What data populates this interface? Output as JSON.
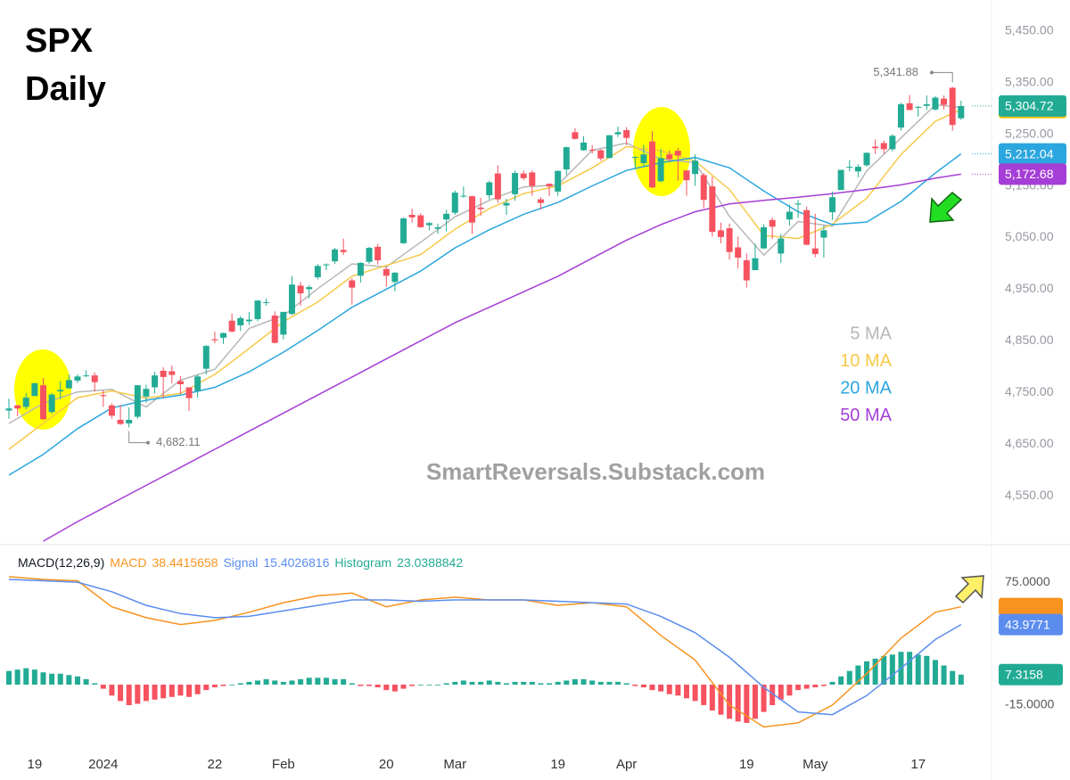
{
  "title": "SPX",
  "subtitle": "Daily",
  "watermark": "SmartReversals.Substack.com",
  "chart_data": [
    {
      "type": "candlestick",
      "categories": [
        null,
        null,
        null,
        "19",
        null,
        null,
        null,
        null,
        null,
        null,
        null,
        "2024",
        null,
        null,
        null,
        null,
        null,
        null,
        null,
        null,
        null,
        null,
        null,
        null,
        "22",
        null,
        null,
        null,
        null,
        null,
        null,
        null,
        "Feb",
        null,
        null,
        null,
        null,
        null,
        null,
        null,
        null,
        null,
        null,
        null,
        "20",
        null,
        null,
        null,
        null,
        null,
        null,
        null,
        "Mar",
        null,
        null,
        null,
        null,
        null,
        null,
        null,
        null,
        null,
        null,
        null,
        "19",
        null,
        null,
        null,
        null,
        null,
        null,
        null,
        "Apr",
        null,
        null,
        null,
        null,
        null,
        null,
        null,
        null,
        null,
        null,
        null,
        null,
        null,
        "19",
        null,
        null,
        null,
        null,
        null,
        null,
        null,
        "May",
        null,
        null,
        null,
        null,
        null,
        null,
        null,
        null,
        null,
        null,
        null,
        "17",
        null,
        null,
        null,
        null,
        null
      ],
      "open": [
        4715,
        4725,
        4722,
        4743,
        4764,
        4712,
        4752,
        4758,
        4773,
        4782,
        4783,
        4745,
        4725,
        4697,
        4690,
        4703,
        4742,
        4760,
        4792,
        4791,
        4772,
        4760,
        4753,
        4796,
        4853,
        4856,
        4889,
        4880,
        4888,
        4892,
        4925,
        4899,
        4862,
        4902,
        4957,
        4950,
        4973,
        4998,
        5004,
        5026,
        4967,
        4976,
        5003,
        5032,
        4989,
        4964,
        5039,
        5094,
        5093,
        5074,
        5067,
        5085,
        5098,
        5130,
        5130,
        5108,
        5132,
        5174,
        5112,
        5134,
        5174,
        5176,
        5124,
        5154,
        5139,
        5182,
        5254,
        5219,
        5220,
        5219,
        5204,
        5250,
        5258,
        5206,
        5194,
        5236,
        5159,
        5211,
        5218,
        5180,
        5173,
        5171,
        5149,
        5064,
        5068,
        5031,
        5006,
        4987,
        5029,
        5084,
        5019,
        5085,
        5114,
        5103,
        5029,
        5050,
        5099,
        5142,
        5187,
        5178,
        5190,
        5226,
        5233,
        5221,
        5263,
        5310,
        5303,
        5305,
        5298,
        5319,
        5340,
        5281
      ],
      "high": [
        4738,
        4726,
        4749,
        4769,
        4778,
        4749,
        4772,
        4785,
        4785,
        4793,
        4789,
        4754,
        4729,
        4726,
        4721,
        4764,
        4765,
        4790,
        4799,
        4802,
        4782,
        4760,
        4785,
        4842,
        4868,
        4866,
        4903,
        4898,
        4906,
        4929,
        4932,
        4907,
        4906,
        4975,
        4964,
        4958,
        4999,
        5000,
        5030,
        5048,
        4971,
        5002,
        5032,
        5038,
        4993,
        4983,
        5089,
        5106,
        5097,
        5080,
        5077,
        5104,
        5141,
        5149,
        5131,
        5127,
        5160,
        5190,
        5125,
        5180,
        5180,
        5180,
        5128,
        5155,
        5180,
        5226,
        5262,
        5246,
        5229,
        5221,
        5249,
        5265,
        5264,
        5208,
        5229,
        5256,
        5222,
        5219,
        5224,
        5180,
        5211,
        5175,
        5168,
        5079,
        5077,
        5052,
        5019,
        5038,
        5076,
        5089,
        5057,
        5114,
        5123,
        5110,
        5096,
        5073,
        5139,
        5181,
        5200,
        5192,
        5215,
        5240,
        5238,
        5250,
        5311,
        5326,
        5305,
        5325,
        5324,
        5325,
        5341.88,
        5315
      ],
      "low": [
        4699,
        4704,
        4717,
        4743,
        4697,
        4709,
        4737,
        4758,
        4768,
        4780,
        4752,
        4722,
        4699,
        4687,
        4682.11,
        4699,
        4730,
        4748,
        4739,
        4768,
        4747,
        4714,
        4740,
        4785,
        4845,
        4844,
        4866,
        4869,
        4881,
        4888,
        4918,
        4845,
        4853,
        4900,
        4918,
        4932,
        4969,
        4987,
        4999,
        5016,
        4920,
        4963,
        4999,
        4998,
        4955,
        4946,
        5038,
        5079,
        5069,
        5064,
        5057,
        5062,
        5094,
        5127,
        5057,
        5092,
        5124,
        5117,
        5094,
        5121,
        5161,
        5131,
        5104,
        5130,
        5131,
        5171,
        5240,
        5218,
        5213,
        5199,
        5204,
        5245,
        5229,
        5184,
        5189,
        5146,
        5157,
        5197,
        5160,
        5131,
        5150,
        5107,
        5052,
        5039,
        5007,
        4990,
        4953,
        4987,
        5028,
        5047,
        5001,
        5073,
        5088,
        5035,
        5012,
        5011,
        5084,
        5142,
        5178,
        5167,
        5187,
        5212,
        5212,
        5217,
        5257,
        5297,
        5284,
        5297,
        5296,
        5298,
        5257,
        5278
      ],
      "close": [
        4719,
        4719,
        4740,
        4768,
        4698,
        4746,
        4755,
        4774,
        4781,
        4783,
        4770,
        4743,
        4705,
        4689,
        4697,
        4764,
        4757,
        4783,
        4780,
        4784,
        4766,
        4739,
        4781,
        4840,
        4851,
        4865,
        4868,
        4894,
        4891,
        4928,
        4925,
        4846,
        4906,
        4959,
        4942,
        4954,
        4995,
        4998,
        5027,
        5022,
        4953,
        5001,
        5030,
        5006,
        4976,
        4982,
        5087,
        5089,
        5070,
        5078,
        5070,
        5096,
        5137,
        5131,
        5079,
        5105,
        5157,
        5124,
        5117,
        5175,
        5165,
        5150,
        5117,
        5149,
        5179,
        5225,
        5241,
        5234,
        5218,
        5203,
        5248,
        5254,
        5243,
        5206,
        5211,
        5147,
        5204,
        5202,
        5209,
        5161,
        5199,
        5123,
        5061,
        5051,
        5022,
        5011,
        4967,
        5010,
        5070,
        5071,
        5048,
        5100,
        5116,
        5036,
        5018,
        5064,
        5128,
        5181,
        5187,
        5187,
        5214,
        5223,
        5221,
        5247,
        5308,
        5297,
        5303,
        5308,
        5321,
        5307,
        5268,
        5304.72
      ],
      "up_color": "#22ab94",
      "down_color": "#f7525f",
      "series": [
        {
          "name": "5 MA",
          "color": "#b7b7b7",
          "x": [
            0,
            4,
            8,
            12,
            16,
            20,
            24,
            28,
            32,
            36,
            40,
            44,
            48,
            52,
            56,
            60,
            64,
            68,
            72,
            76,
            80,
            84,
            88,
            92,
            96,
            100,
            104,
            108,
            111
          ],
          "values": [
            4690,
            4729,
            4751,
            4756,
            4722,
            4774,
            4795,
            4874,
            4899,
            4951,
            4999,
            4993,
            5041,
            5090,
            5122,
            5148,
            5152,
            5219,
            5233,
            5202,
            5195,
            5091,
            5016,
            5081,
            5072,
            5179,
            5243,
            5307,
            5302
          ]
        },
        {
          "name": "10 MA",
          "color": "#f7c948",
          "x": [
            0,
            4,
            8,
            12,
            16,
            20,
            24,
            28,
            32,
            36,
            40,
            44,
            48,
            52,
            56,
            60,
            64,
            68,
            72,
            76,
            80,
            84,
            88,
            92,
            96,
            100,
            104,
            108,
            111
          ],
          "values": [
            4640,
            4690,
            4740,
            4753,
            4739,
            4748,
            4785,
            4835,
            4887,
            4925,
            4975,
            4996,
            5017,
            5066,
            5106,
            5135,
            5150,
            5185,
            5226,
            5218,
            5198,
            5143,
            5054,
            5048,
            5076,
            5126,
            5211,
            5275,
            5298
          ]
        },
        {
          "name": "20 MA",
          "color": "#2ba6de",
          "x": [
            0,
            4,
            8,
            12,
            16,
            20,
            24,
            28,
            32,
            36,
            40,
            44,
            48,
            52,
            56,
            60,
            64,
            68,
            72,
            76,
            80,
            84,
            88,
            92,
            96,
            100,
            104,
            108,
            111
          ],
          "values": [
            4590,
            4630,
            4680,
            4720,
            4735,
            4745,
            4760,
            4790,
            4828,
            4870,
            4915,
            4950,
            4985,
            5030,
            5065,
            5095,
            5118,
            5150,
            5180,
            5195,
            5205,
            5185,
            5140,
            5100,
            5075,
            5080,
            5120,
            5175,
            5212.04
          ]
        },
        {
          "name": "50 MA",
          "color": "#a53ed6",
          "x": [
            4,
            8,
            12,
            16,
            20,
            24,
            28,
            32,
            36,
            40,
            44,
            48,
            52,
            56,
            60,
            64,
            68,
            72,
            76,
            80,
            84,
            88,
            92,
            96,
            100,
            104,
            108,
            111
          ],
          "values": [
            4462,
            4500,
            4535,
            4570,
            4605,
            4640,
            4675,
            4710,
            4745,
            4780,
            4815,
            4850,
            4885,
            4915,
            4945,
            4975,
            5010,
            5045,
            5075,
            5100,
            5115,
            5122,
            5128,
            5135,
            5143,
            5152,
            5165,
            5172.68
          ]
        }
      ],
      "ylim": [
        4457,
        5510
      ],
      "yticks": [
        {
          "value": 5450,
          "label": "5,450.00"
        },
        {
          "value": 5350,
          "label": "5,350.00"
        },
        {
          "value": 5250,
          "label": "5,250.00"
        },
        {
          "value": 5150,
          "label": "5,150.00"
        },
        {
          "value": 5050,
          "label": "5,050.00"
        },
        {
          "value": 4950,
          "label": "4,950.00"
        },
        {
          "value": 4850,
          "label": "4,850.00"
        },
        {
          "value": 4750,
          "label": "4,750.00"
        },
        {
          "value": 4650,
          "label": "4,650.00"
        },
        {
          "value": 4550,
          "label": "4,550.00"
        }
      ],
      "price_labels": [
        {
          "value": 5304.72,
          "label": "5,304.72",
          "color": "#22ab94"
        },
        {
          "value": 5212.04,
          "label": "5,212.04",
          "color": "#2ba6de"
        },
        {
          "value": 5172.68,
          "label": "5,172.68",
          "color": "#a53ed6"
        }
      ],
      "annotations": [
        {
          "value": 5341.88,
          "label": "5,341.88"
        },
        {
          "value": 4682.11,
          "label": "4,682.11"
        }
      ]
    },
    {
      "type": "macd",
      "title": "MACD(12,26,9)",
      "series": [
        {
          "name": "MACD",
          "legend_value": "38.4415658",
          "color": "#f7931e",
          "x": [
            0,
            4,
            8,
            12,
            16,
            20,
            24,
            28,
            32,
            36,
            40,
            44,
            48,
            52,
            56,
            60,
            64,
            68,
            72,
            76,
            80,
            84,
            88,
            92,
            96,
            100,
            104,
            108,
            111
          ],
          "values": [
            79,
            77,
            76,
            57,
            49,
            44,
            47,
            53,
            60,
            65,
            67,
            57,
            62,
            64,
            62,
            62,
            58,
            60,
            57,
            36,
            18,
            -15,
            -31,
            -28,
            -15,
            8,
            34,
            53,
            57
          ]
        },
        {
          "name": "Signal",
          "legend_value": "15.4026816",
          "color": "#5b8def",
          "x": [
            0,
            4,
            8,
            12,
            16,
            20,
            24,
            28,
            32,
            36,
            40,
            44,
            48,
            52,
            56,
            60,
            64,
            68,
            72,
            76,
            80,
            84,
            88,
            92,
            96,
            100,
            104,
            108,
            111
          ],
          "values": [
            77,
            76,
            75,
            68,
            58,
            52,
            49,
            50,
            54,
            58,
            62,
            62,
            61,
            62,
            62,
            62,
            61,
            60,
            59,
            50,
            38,
            20,
            -2,
            -20,
            -22,
            -8,
            12,
            33,
            43.9771
          ]
        }
      ],
      "histogram": {
        "name": "Histogram",
        "legend_value": "23.0388842",
        "color": "#22ab94",
        "negative_color": "#f7525f",
        "values": [
          10,
          11,
          12,
          11,
          9,
          8,
          8,
          7,
          6,
          4,
          1,
          -3,
          -8,
          -12,
          -15,
          -14,
          -12,
          -11,
          -10,
          -9,
          -8,
          -9,
          -7,
          -4,
          -2,
          -1,
          0,
          1,
          2,
          3,
          4,
          3,
          2,
          3,
          4,
          5,
          5,
          5,
          4,
          4,
          1,
          -1,
          -1,
          -2,
          -4,
          -5,
          -3,
          -1,
          0,
          0,
          0,
          1,
          2,
          3,
          2,
          2,
          3,
          2,
          1,
          2,
          2,
          2,
          1,
          1,
          2,
          3,
          4,
          4,
          3,
          2,
          2,
          2,
          1,
          -1,
          -2,
          -4,
          -5,
          -7,
          -8,
          -10,
          -12,
          -15,
          -19,
          -22,
          -25,
          -27,
          -28,
          -25,
          -20,
          -15,
          -11,
          -8,
          -4,
          -3,
          -2,
          -1,
          2,
          6,
          10,
          14,
          17,
          19,
          21,
          22,
          24,
          24,
          22,
          21,
          18,
          14,
          10,
          7.3158
        ]
      },
      "ylim": [
        -50.9,
        101.8
      ],
      "yticks": [
        {
          "value": 75,
          "label": "75.0000"
        },
        {
          "value": -15,
          "label": "-15.0000"
        }
      ],
      "value_labels": [
        {
          "value": 43.9771,
          "label": "43.9771",
          "color": "#5b8def"
        },
        {
          "value": 7.3158,
          "label": "7.3158",
          "color": "#22ab94"
        }
      ]
    }
  ]
}
